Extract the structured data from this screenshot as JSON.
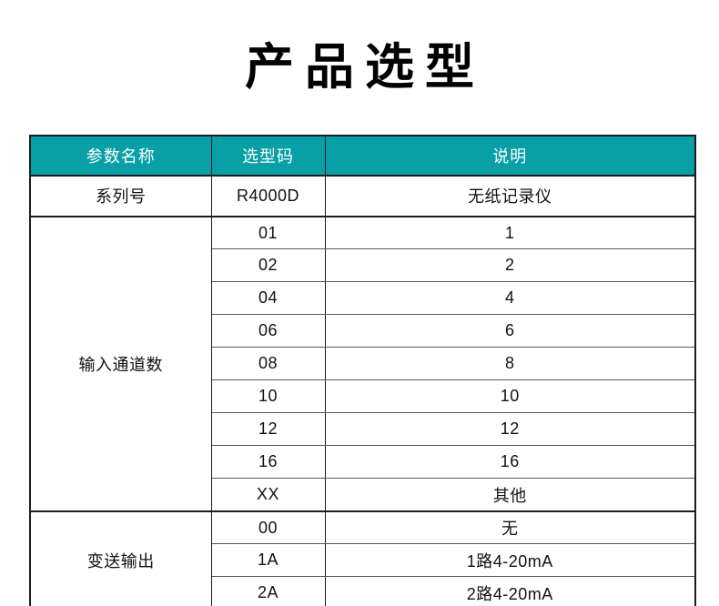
{
  "colors": {
    "accent": "#089FA6",
    "header_text": "#FFFFFF",
    "body_text": "#111111",
    "line_strong": "#1C1C1C",
    "line_inner": "#555555",
    "page_bg": "#FFFFFF"
  },
  "page": {
    "title": "产品选型"
  },
  "table": {
    "headers": [
      "参数名称",
      "选型码",
      "说明"
    ],
    "sections": [
      {
        "name": "系列号",
        "rows": [
          {
            "code": "R4000D",
            "desc": "无纸记录仪"
          }
        ]
      },
      {
        "name": "输入通道数",
        "rows": [
          {
            "code": "01",
            "desc": "1"
          },
          {
            "code": "02",
            "desc": "2"
          },
          {
            "code": "04",
            "desc": "4"
          },
          {
            "code": "06",
            "desc": "6"
          },
          {
            "code": "08",
            "desc": "8"
          },
          {
            "code": "10",
            "desc": "10"
          },
          {
            "code": "12",
            "desc": "12"
          },
          {
            "code": "16",
            "desc": "16"
          },
          {
            "code": "XX",
            "desc": "其他"
          }
        ]
      },
      {
        "name": "变送输出",
        "rows": [
          {
            "code": "00",
            "desc": "无"
          },
          {
            "code": "1A",
            "desc": "1路4-20mA"
          },
          {
            "code": "2A",
            "desc": "2路4-20mA"
          }
        ]
      }
    ]
  }
}
